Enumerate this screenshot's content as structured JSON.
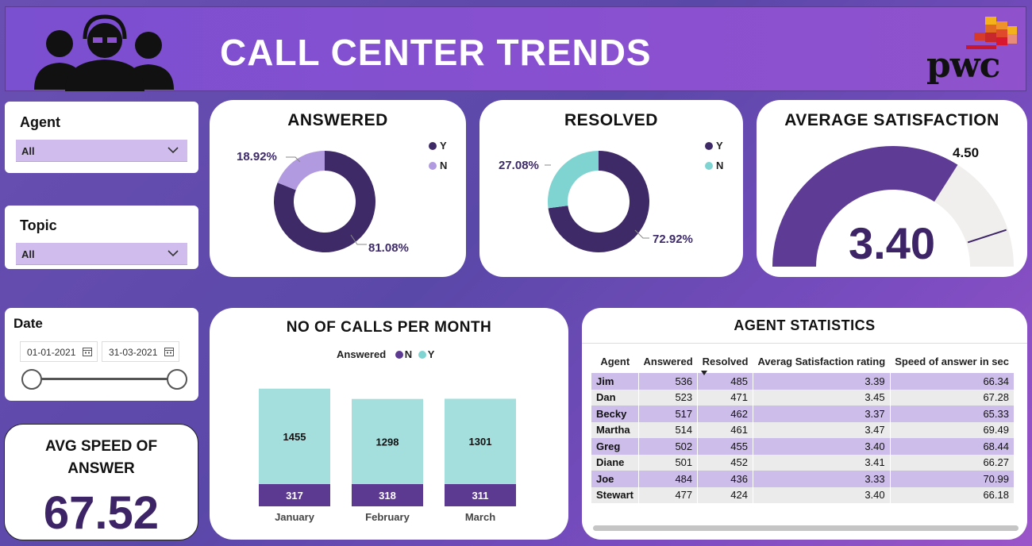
{
  "header": {
    "title": "CALL CENTER TRENDS",
    "brand": "pwc"
  },
  "colors": {
    "dark_purple": "#3f2a68",
    "light_purple": "#b19ae0",
    "teal": "#7fd4d2",
    "bar_teal": "#a4dedd",
    "bar_purple": "#5d3a92",
    "gauge_fill": "#5e3c95",
    "gauge_bg": "#f0efee"
  },
  "filters": {
    "agent": {
      "label": "Agent",
      "value": "All"
    },
    "topic": {
      "label": "Topic",
      "value": "All"
    },
    "date": {
      "label": "Date",
      "start": "01-01-2021",
      "end": "31-03-2021"
    }
  },
  "answered": {
    "title": "ANSWERED",
    "legend": [
      "Y",
      "N"
    ],
    "chart_data": {
      "type": "pie",
      "categories": [
        "Y",
        "N"
      ],
      "values": [
        81.08,
        18.92
      ],
      "labels": [
        "81.08%",
        "18.92%"
      ]
    }
  },
  "resolved": {
    "title": "RESOLVED",
    "legend": [
      "Y",
      "N"
    ],
    "chart_data": {
      "type": "pie",
      "categories": [
        "Y",
        "N"
      ],
      "values": [
        72.92,
        27.08
      ],
      "labels": [
        "72.92%",
        "27.08%"
      ]
    }
  },
  "satisfaction": {
    "title": "AVERAGE SATISFACTION",
    "value": "3.40",
    "target": "4.50",
    "min": 0,
    "max": 5,
    "value_num": 3.4,
    "target_num": 4.5
  },
  "avg_speed": {
    "title_line1": "AVG SPEED OF",
    "title_line2": "ANSWER",
    "value": "67.52"
  },
  "calls_per_month": {
    "title": "NO OF CALLS PER MONTH",
    "legend_title": "Answered",
    "legend": [
      "N",
      "Y"
    ],
    "chart_data": {
      "type": "bar",
      "stacked": true,
      "categories": [
        "January",
        "February",
        "March"
      ],
      "series": [
        {
          "name": "N",
          "values": [
            317,
            318,
            311
          ]
        },
        {
          "name": "Y",
          "values": [
            1455,
            1298,
            1301
          ]
        }
      ]
    }
  },
  "agent_stats": {
    "title": "AGENT STATISTICS",
    "columns": [
      "Agent",
      "Answered",
      "Resolved",
      "Averag Satisfaction rating",
      "Speed of answer in sec"
    ],
    "rows": [
      [
        "Jim",
        "536",
        "485",
        "3.39",
        "66.34"
      ],
      [
        "Dan",
        "523",
        "471",
        "3.45",
        "67.28"
      ],
      [
        "Becky",
        "517",
        "462",
        "3.37",
        "65.33"
      ],
      [
        "Martha",
        "514",
        "461",
        "3.47",
        "69.49"
      ],
      [
        "Greg",
        "502",
        "455",
        "3.40",
        "68.44"
      ],
      [
        "Diane",
        "501",
        "452",
        "3.41",
        "66.27"
      ],
      [
        "Joe",
        "484",
        "436",
        "3.33",
        "70.99"
      ],
      [
        "Stewart",
        "477",
        "424",
        "3.40",
        "66.18"
      ]
    ]
  }
}
